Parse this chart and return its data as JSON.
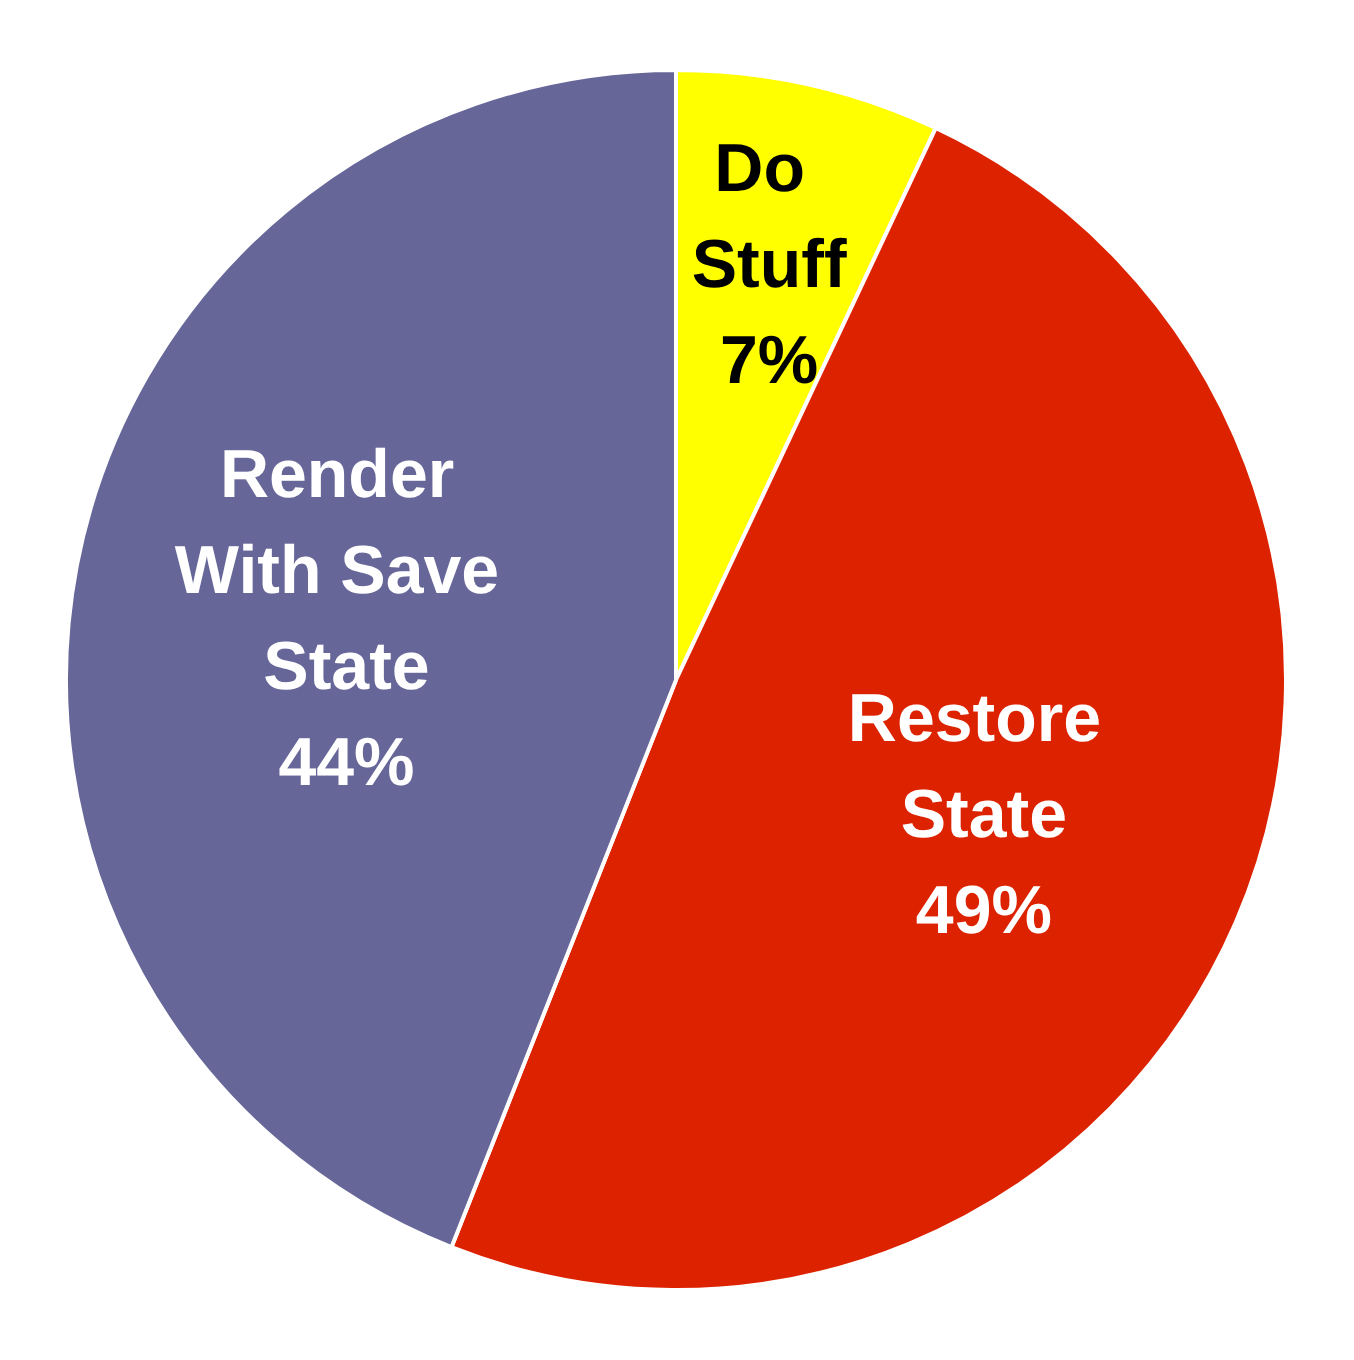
{
  "chart_data": {
    "type": "pie",
    "categories": [
      "Do Stuff",
      "Restore State",
      "Render With Save State"
    ],
    "values": [
      7,
      49,
      44
    ],
    "value_labels": [
      "7%",
      "49%",
      "44%"
    ],
    "data_labels": true,
    "colors": [
      "#ffff00",
      "#dd2200",
      "#666699"
    ]
  }
}
